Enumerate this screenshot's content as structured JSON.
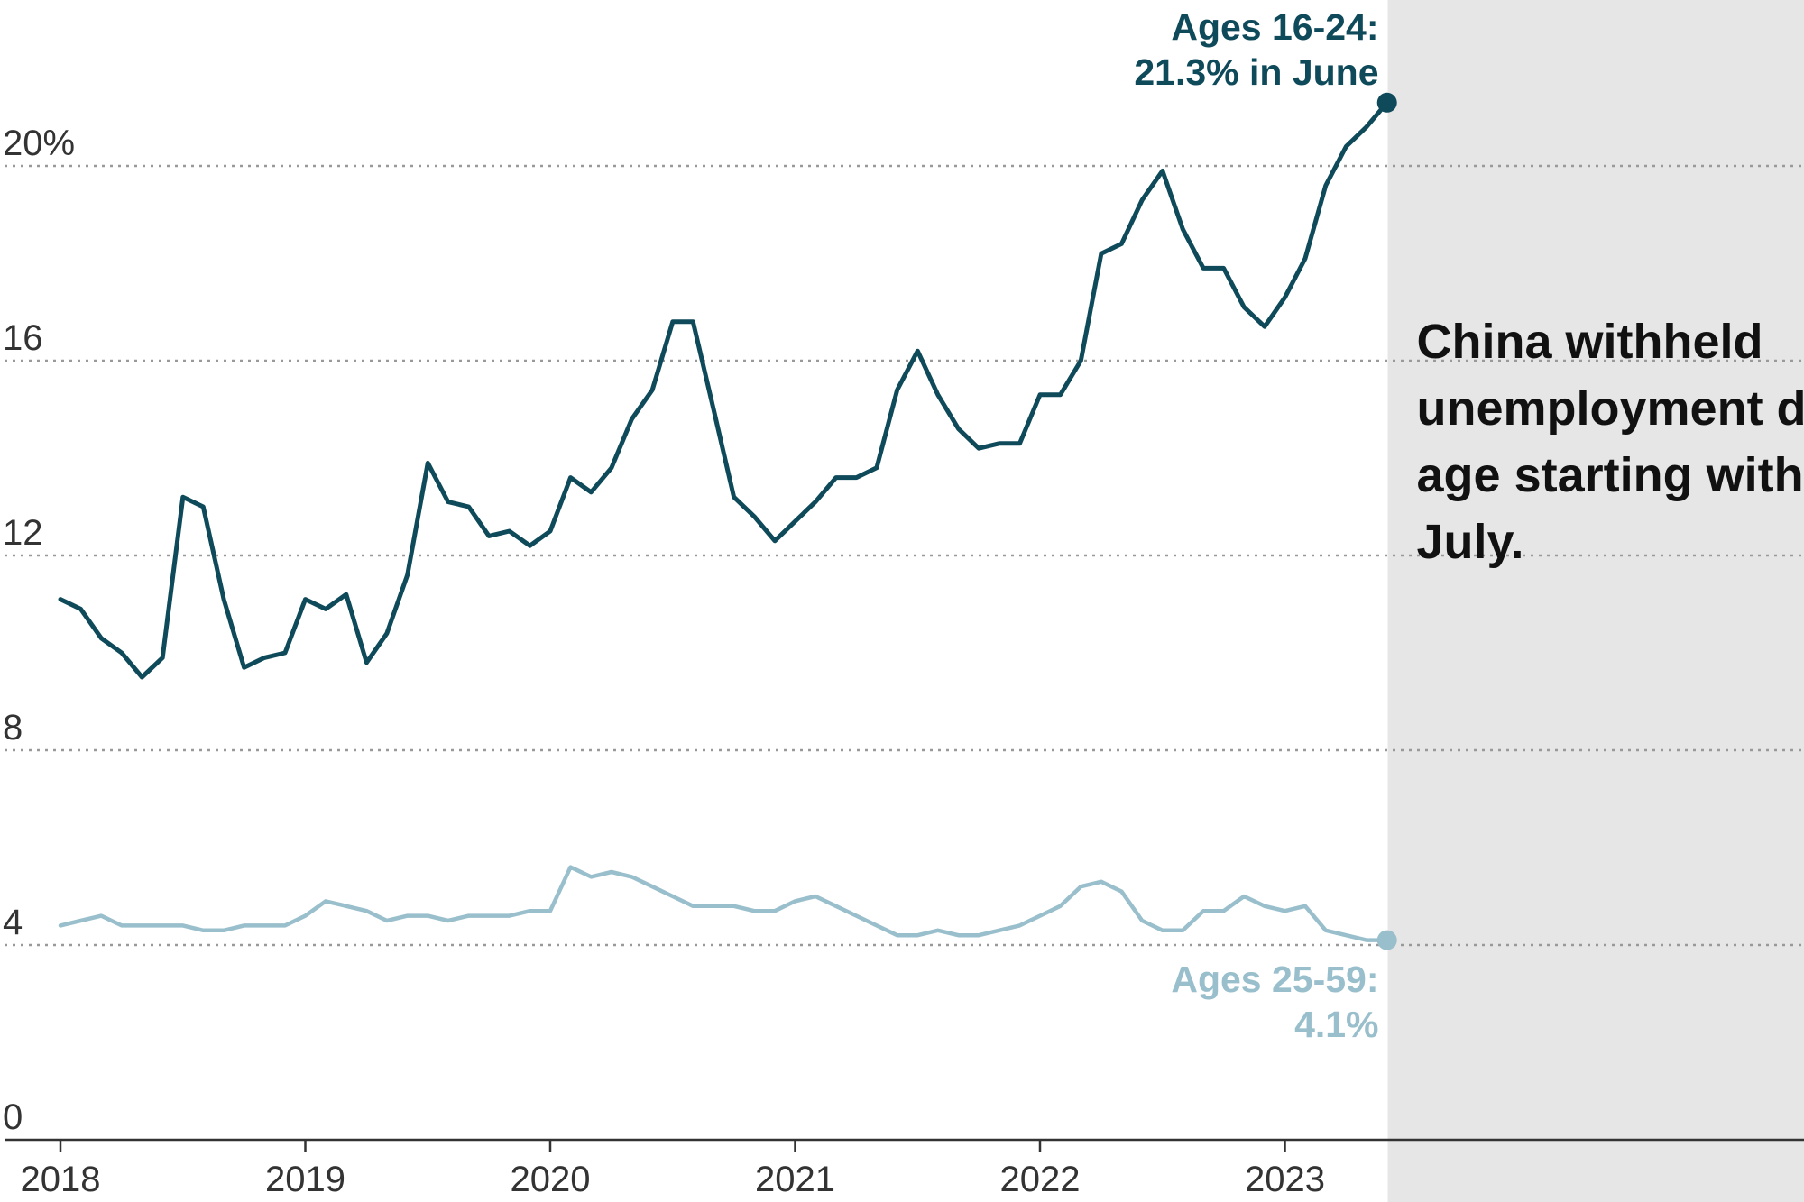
{
  "chart_data": {
    "type": "line",
    "title": "",
    "xlabel": "",
    "ylabel": "",
    "ylim": [
      0,
      22
    ],
    "y_ticks": [
      {
        "value": 0,
        "label": "0"
      },
      {
        "value": 4,
        "label": "4"
      },
      {
        "value": 8,
        "label": "8"
      },
      {
        "value": 12,
        "label": "12"
      },
      {
        "value": 16,
        "label": "16"
      },
      {
        "value": 20,
        "label": "20%"
      }
    ],
    "x_ticks": [
      {
        "value": 2018,
        "label": "2018"
      },
      {
        "value": 2019,
        "label": "2019"
      },
      {
        "value": 2020,
        "label": "2020"
      },
      {
        "value": 2021,
        "label": "2021"
      },
      {
        "value": 2022,
        "label": "2022"
      },
      {
        "value": 2023,
        "label": "2023"
      }
    ],
    "xlim": [
      2018,
      2024.2
    ],
    "withheld_start": 2023.42,
    "annotation": "China withheld unemployment data by age starting with July.",
    "colors": {
      "youth": "#0e4a5a",
      "adult": "#99bfcc",
      "shade": "#e6e6e6",
      "grid": "#999999",
      "axis": "#333333"
    },
    "series": [
      {
        "name": "Ages 16-24",
        "label_lines": [
          "Ages 16-24:",
          "21.3% in June"
        ],
        "x": [
          2018.0,
          2018.083,
          2018.167,
          2018.25,
          2018.333,
          2018.417,
          2018.5,
          2018.583,
          2018.667,
          2018.75,
          2018.833,
          2018.917,
          2019.0,
          2019.083,
          2019.167,
          2019.25,
          2019.333,
          2019.417,
          2019.5,
          2019.583,
          2019.667,
          2019.75,
          2019.833,
          2019.917,
          2020.0,
          2020.083,
          2020.167,
          2020.25,
          2020.333,
          2020.417,
          2020.5,
          2020.583,
          2020.667,
          2020.75,
          2020.833,
          2020.917,
          2021.0,
          2021.083,
          2021.167,
          2021.25,
          2021.333,
          2021.417,
          2021.5,
          2021.583,
          2021.667,
          2021.75,
          2021.833,
          2021.917,
          2022.0,
          2022.083,
          2022.167,
          2022.25,
          2022.333,
          2022.417,
          2022.5,
          2022.583,
          2022.667,
          2022.75,
          2022.833,
          2022.917,
          2023.0,
          2023.083,
          2023.167,
          2023.25,
          2023.333,
          2023.417
        ],
        "values": [
          11.1,
          10.9,
          10.3,
          10.0,
          9.5,
          9.9,
          13.2,
          13.0,
          11.1,
          9.7,
          9.9,
          10.0,
          11.1,
          10.9,
          11.2,
          9.8,
          10.4,
          11.6,
          13.9,
          13.1,
          13.0,
          12.4,
          12.5,
          12.2,
          12.5,
          13.6,
          13.3,
          13.8,
          14.8,
          15.4,
          16.8,
          16.8,
          15.0,
          13.2,
          12.8,
          12.3,
          12.7,
          13.1,
          13.6,
          13.6,
          13.8,
          15.4,
          16.2,
          15.3,
          14.6,
          14.2,
          14.3,
          14.3,
          15.3,
          15.3,
          16.0,
          18.2,
          18.4,
          19.3,
          19.9,
          18.7,
          17.9,
          17.9,
          17.1,
          16.7,
          17.3,
          18.1,
          19.6,
          20.4,
          20.8,
          21.3
        ]
      },
      {
        "name": "Ages 25-59",
        "label_lines": [
          "Ages 25-59:",
          "4.1%"
        ],
        "x": [
          2018.0,
          2018.083,
          2018.167,
          2018.25,
          2018.333,
          2018.417,
          2018.5,
          2018.583,
          2018.667,
          2018.75,
          2018.833,
          2018.917,
          2019.0,
          2019.083,
          2019.167,
          2019.25,
          2019.333,
          2019.417,
          2019.5,
          2019.583,
          2019.667,
          2019.75,
          2019.833,
          2019.917,
          2020.0,
          2020.083,
          2020.167,
          2020.25,
          2020.333,
          2020.417,
          2020.5,
          2020.583,
          2020.667,
          2020.75,
          2020.833,
          2020.917,
          2021.0,
          2021.083,
          2021.167,
          2021.25,
          2021.333,
          2021.417,
          2021.5,
          2021.583,
          2021.667,
          2021.75,
          2021.833,
          2021.917,
          2022.0,
          2022.083,
          2022.167,
          2022.25,
          2022.333,
          2022.417,
          2022.5,
          2022.583,
          2022.667,
          2022.75,
          2022.833,
          2022.917,
          2023.0,
          2023.083,
          2023.167,
          2023.25,
          2023.333,
          2023.417
        ],
        "values": [
          4.4,
          4.5,
          4.6,
          4.4,
          4.4,
          4.4,
          4.4,
          4.3,
          4.3,
          4.4,
          4.4,
          4.4,
          4.6,
          4.9,
          4.8,
          4.7,
          4.5,
          4.6,
          4.6,
          4.5,
          4.6,
          4.6,
          4.6,
          4.7,
          4.7,
          5.6,
          5.4,
          5.5,
          5.4,
          5.2,
          5.0,
          4.8,
          4.8,
          4.8,
          4.7,
          4.7,
          4.9,
          5.0,
          4.8,
          4.6,
          4.4,
          4.2,
          4.2,
          4.3,
          4.2,
          4.2,
          4.3,
          4.4,
          4.6,
          4.8,
          5.2,
          5.3,
          5.1,
          4.5,
          4.3,
          4.3,
          4.7,
          4.7,
          5.0,
          4.8,
          4.7,
          4.8,
          4.3,
          4.2,
          4.1,
          4.1
        ]
      }
    ]
  }
}
